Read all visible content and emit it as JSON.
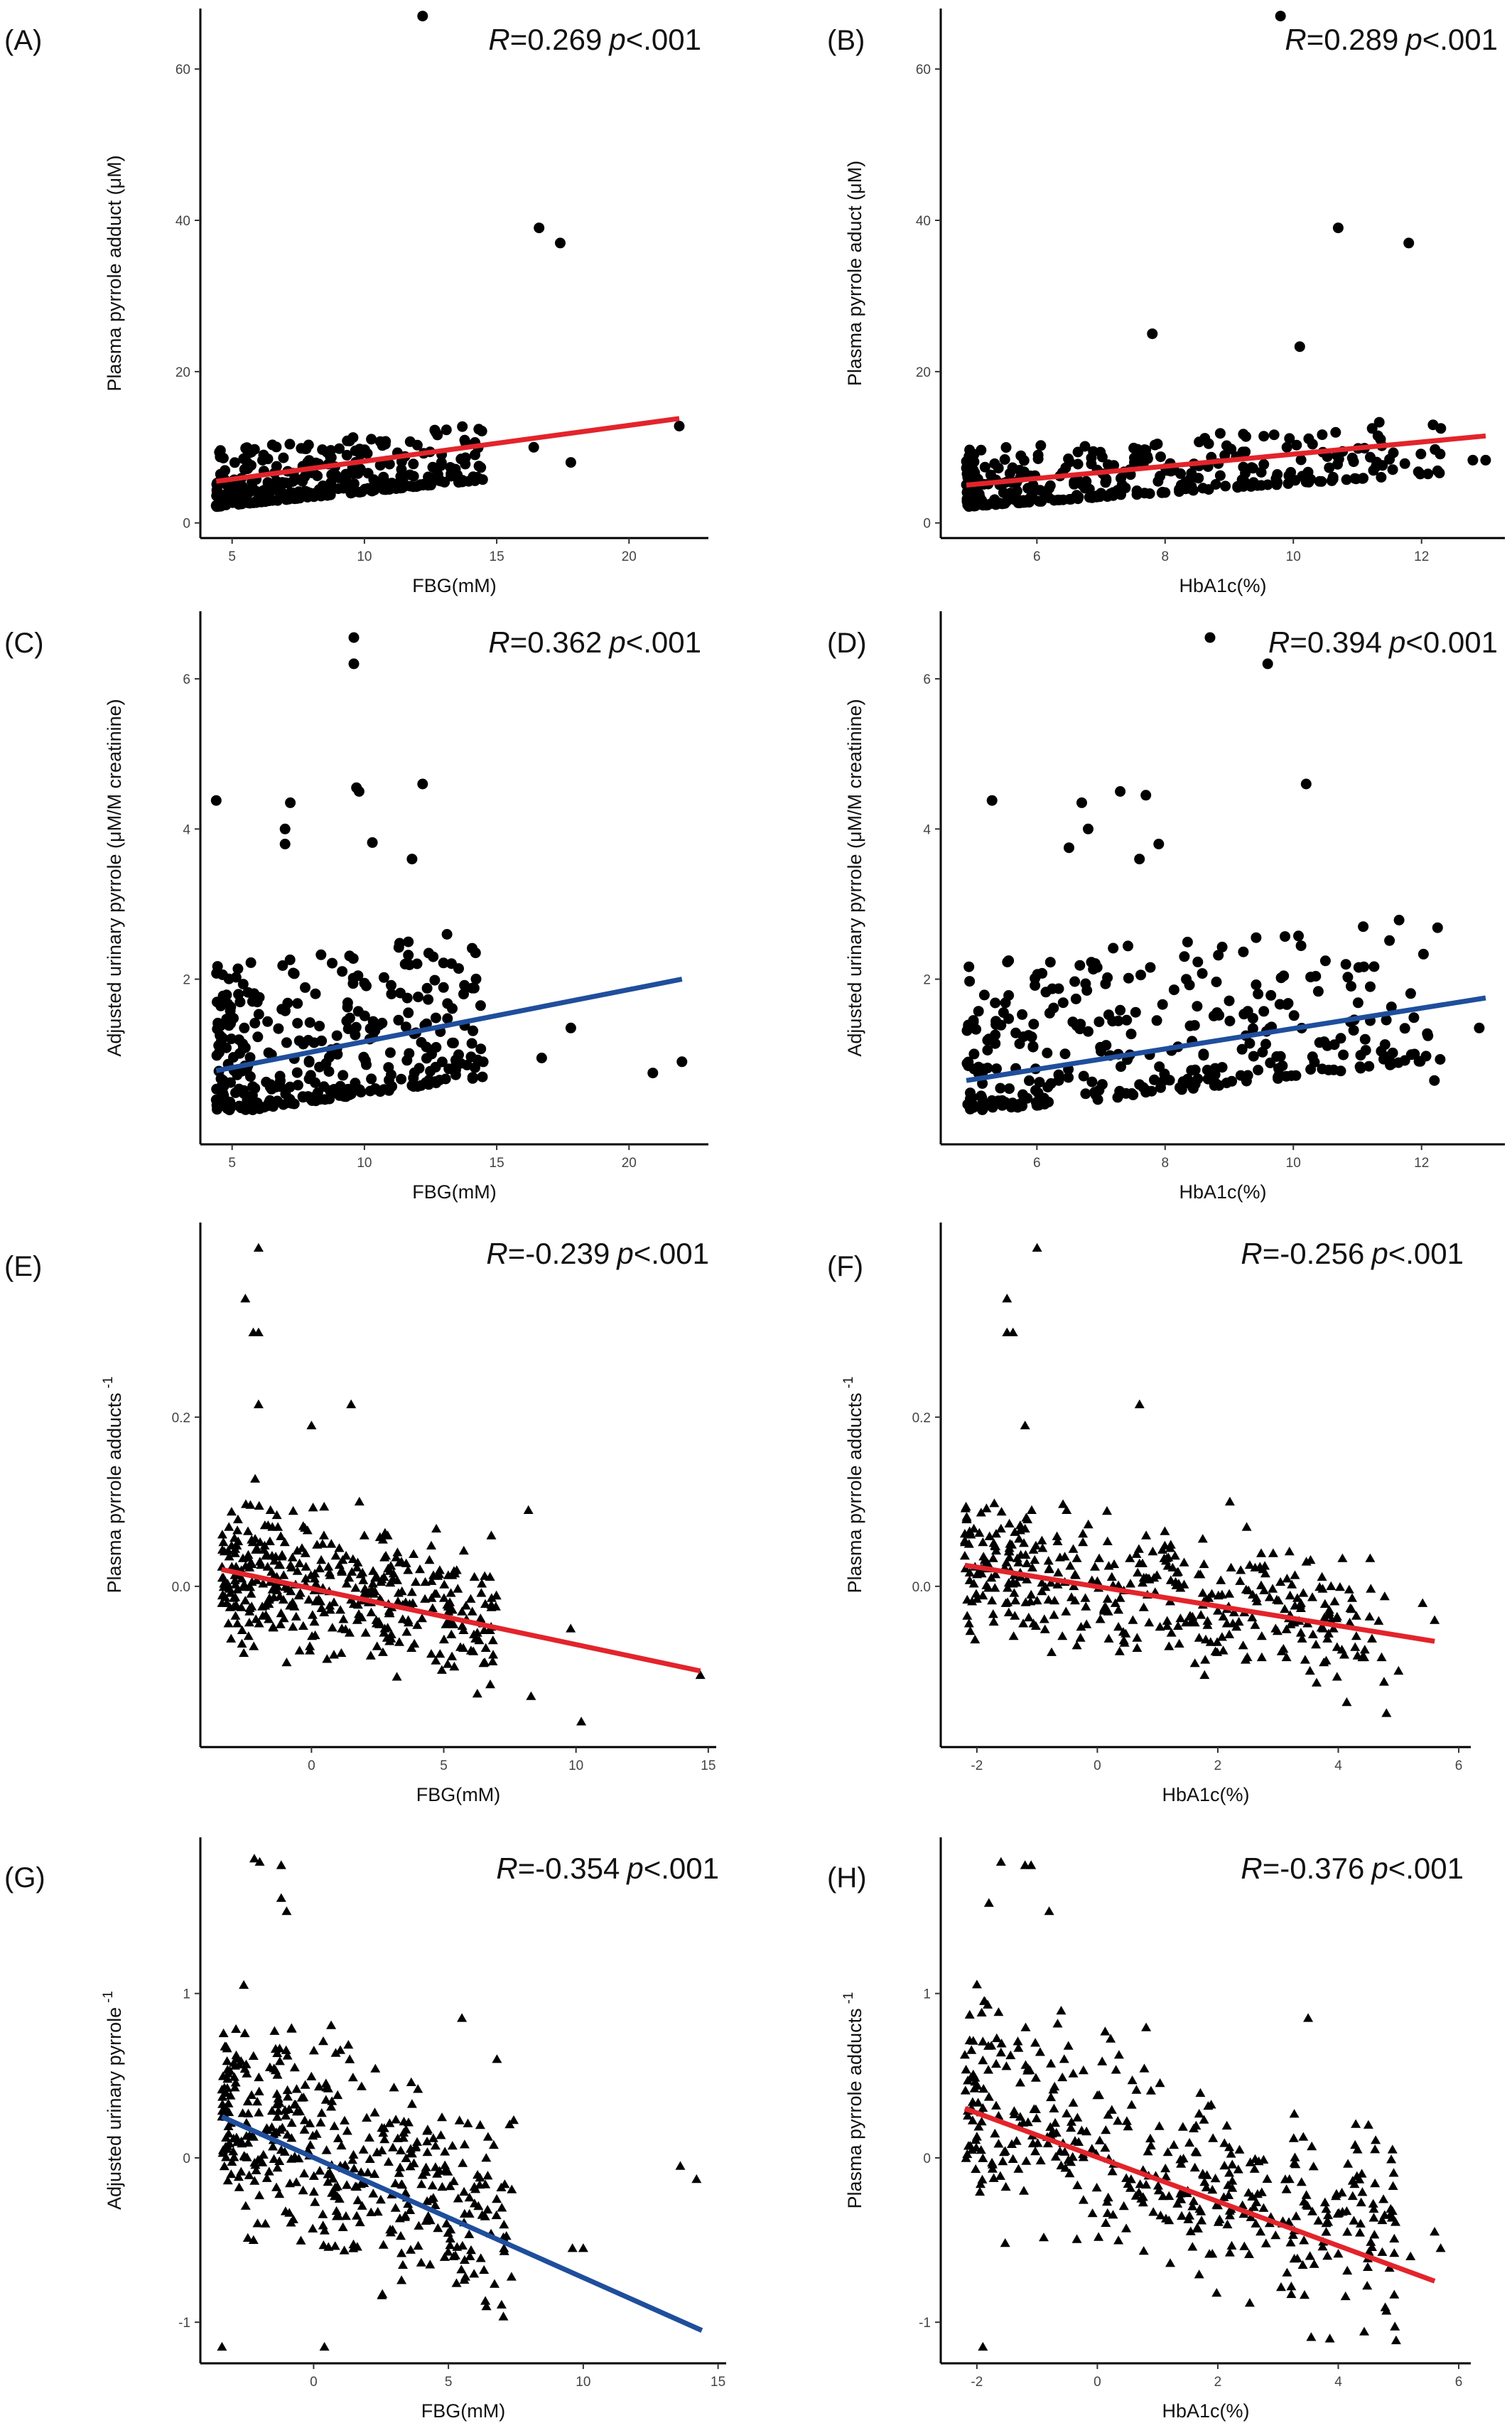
{
  "colors": {
    "red": "#e3242b",
    "blue": "#1f4e9c",
    "points": "#000000"
  },
  "chart_data": [
    {
      "label": "(A)",
      "type": "scatter",
      "marker": "circle",
      "xlabel": "FBG(mM)",
      "ylabel": "Plasma pyrrole adduct (μM)",
      "xlim": [
        3.8,
        23
      ],
      "ylim": [
        -2,
        68
      ],
      "xticks": [
        5,
        10,
        15,
        20
      ],
      "yticks": [
        0,
        20,
        40,
        60
      ],
      "xtick_labels": [
        "5",
        "10",
        "15",
        "20"
      ],
      "ytick_labels": [
        "0",
        "20",
        "40",
        "60"
      ],
      "stat_R": "=0.269",
      "stat_p": ".001",
      "fit": {
        "color": "red",
        "x": [
          4.4,
          21.9
        ],
        "y": [
          5.5,
          13.8
        ]
      },
      "outliers": [
        [
          12.2,
          67
        ],
        [
          16.6,
          39
        ],
        [
          17.4,
          37
        ],
        [
          21.9,
          12.8
        ],
        [
          17.8,
          8
        ],
        [
          16.4,
          10
        ],
        [
          12.7,
          12
        ],
        [
          13.1,
          12.3
        ]
      ],
      "cluster": {
        "seed": 11,
        "n": 330,
        "x": [
          4.4,
          14.5
        ],
        "xskew": 1.7,
        "y_min": 0.5,
        "y_base": 3,
        "y_slope": 0.35,
        "y_spread": 7.5,
        "yskew": 2.4
      },
      "points": []
    },
    {
      "label": "(B)",
      "type": "scatter",
      "marker": "circle",
      "xlabel": "HbA1c(%)",
      "ylabel": "Plasma pyrrole aduct (μM)",
      "xlim": [
        4.5,
        13.3
      ],
      "ylim": [
        -2,
        68
      ],
      "xticks": [
        6,
        8,
        10,
        12
      ],
      "yticks": [
        0,
        20,
        40,
        60
      ],
      "xtick_labels": [
        "6",
        "8",
        "10",
        "12"
      ],
      "ytick_labels": [
        "0",
        "20",
        "40",
        "60"
      ],
      "stat_R": "=0.289",
      "stat_p": ".001",
      "fit": {
        "color": "red",
        "x": [
          4.9,
          13.0
        ],
        "y": [
          5.0,
          11.5
        ]
      },
      "outliers": [
        [
          9.8,
          67
        ],
        [
          10.7,
          39
        ],
        [
          11.8,
          37
        ],
        [
          13.0,
          8.3
        ],
        [
          12.8,
          8.3
        ],
        [
          12.3,
          12.5
        ],
        [
          10.1,
          23.3
        ],
        [
          7.8,
          25
        ]
      ],
      "cluster": {
        "seed": 23,
        "n": 330,
        "x": [
          4.9,
          12.3
        ],
        "xskew": 1.6,
        "y_min": 0.5,
        "y_base": 3,
        "y_slope": 0.6,
        "y_spread": 7.5,
        "yskew": 2.4
      },
      "points": []
    },
    {
      "label": "(C)",
      "type": "scatter",
      "marker": "circle",
      "xlabel": "FBG(mM)",
      "ylabel": "Adjusted urinary pyrrole (μM/M creatinine)",
      "xlim": [
        3.8,
        23
      ],
      "ylim": [
        -0.2,
        6.9
      ],
      "xticks": [
        5,
        10,
        15,
        20
      ],
      "yticks": [
        2,
        4,
        6
      ],
      "xtick_labels": [
        "5",
        "10",
        "15",
        "20"
      ],
      "ytick_labels": [
        "2",
        "4",
        "6"
      ],
      "stat_R": "=0.362",
      "stat_p": ".001",
      "fit": {
        "color": "blue",
        "x": [
          4.4,
          22.0
        ],
        "y": [
          0.78,
          2.0
        ]
      },
      "outliers": [
        [
          9.6,
          6.55
        ],
        [
          9.6,
          6.2
        ],
        [
          9.7,
          4.55
        ],
        [
          9.8,
          4.5
        ],
        [
          12.2,
          4.6
        ],
        [
          4.4,
          4.38
        ],
        [
          7.2,
          4.35
        ],
        [
          7.0,
          4.0
        ],
        [
          7.0,
          3.8
        ],
        [
          10.3,
          3.82
        ],
        [
          11.8,
          3.6
        ],
        [
          20.9,
          0.75
        ],
        [
          22.0,
          0.9
        ],
        [
          17.8,
          1.35
        ],
        [
          16.7,
          0.95
        ],
        [
          14.2,
          2.35
        ]
      ],
      "cluster": {
        "seed": 37,
        "n": 330,
        "x": [
          4.4,
          14.5
        ],
        "xskew": 1.6,
        "y_min": 0.25,
        "y_base": 0.3,
        "y_slope": 0.05,
        "y_spread": 2.0,
        "yskew": 1.9
      },
      "points": []
    },
    {
      "label": "(D)",
      "type": "scatter",
      "marker": "circle",
      "xlabel": "HbA1c(%)",
      "ylabel": "Adjusted urinary pyrrole (μM/M creatinine)",
      "xlim": [
        4.5,
        13.3
      ],
      "ylim": [
        -0.2,
        6.9
      ],
      "xticks": [
        6,
        8,
        10,
        12
      ],
      "yticks": [
        2,
        4,
        6
      ],
      "xtick_labels": [
        "6",
        "8",
        "10",
        "12"
      ],
      "ytick_labels": [
        "2",
        "4",
        "6"
      ],
      "stat_R": "=0.394",
      "stat_p": "0.001",
      "fit": {
        "color": "blue",
        "x": [
          4.9,
          13.0
        ],
        "y": [
          0.65,
          1.75
        ]
      },
      "outliers": [
        [
          8.7,
          6.55
        ],
        [
          9.6,
          6.2
        ],
        [
          10.2,
          4.6
        ],
        [
          5.3,
          4.38
        ],
        [
          6.7,
          4.35
        ],
        [
          6.8,
          4.0
        ],
        [
          6.5,
          3.75
        ],
        [
          7.3,
          4.5
        ],
        [
          7.7,
          4.45
        ],
        [
          7.9,
          3.8
        ],
        [
          7.6,
          3.6
        ],
        [
          12.2,
          0.65
        ],
        [
          12.9,
          1.35
        ],
        [
          11.2,
          1.9
        ]
      ],
      "cluster": {
        "seed": 53,
        "n": 330,
        "x": [
          4.9,
          12.3
        ],
        "xskew": 1.4,
        "y_min": 0.25,
        "y_base": 0.3,
        "y_slope": 0.1,
        "y_spread": 2.0,
        "yskew": 1.9
      },
      "points": []
    },
    {
      "label": "(E)",
      "type": "scatter",
      "marker": "triangle",
      "xlabel": "FBG(mM)",
      "ylabel": "Plasma pyrrole adducts",
      "ylabel_superscript": "-1",
      "xlim": [
        -4.2,
        15.3
      ],
      "ylim": [
        -0.19,
        0.43
      ],
      "xticks": [
        0,
        5,
        10,
        15
      ],
      "yticks": [
        0.0,
        0.2
      ],
      "xtick_labels": [
        "0",
        "5",
        "10",
        "15"
      ],
      "ytick_labels": [
        "0.0",
        "0.2"
      ],
      "stat_R": "=-0.239",
      "stat_p": ".001",
      "fit": {
        "color": "red",
        "x": [
          -3.4,
          14.7
        ],
        "y": [
          0.02,
          -0.1
        ]
      },
      "outliers": [
        [
          -2.0,
          0.4
        ],
        [
          -2.5,
          0.34
        ],
        [
          -2.2,
          0.3
        ],
        [
          -2.0,
          0.3
        ],
        [
          1.5,
          0.215
        ],
        [
          -2.0,
          0.215
        ],
        [
          0.0,
          0.19
        ],
        [
          10.2,
          -0.16
        ],
        [
          14.7,
          -0.105
        ],
        [
          8.3,
          -0.13
        ],
        [
          9.8,
          -0.05
        ],
        [
          8.2,
          0.09
        ],
        [
          6.8,
          0.06
        ]
      ],
      "cluster": {
        "seed": 71,
        "n": 400,
        "x": [
          -3.4,
          7.0
        ],
        "xskew": 1.3,
        "y_mode": "centered",
        "y_center": 0.0,
        "y_slope": -0.006,
        "y_spread": 0.13,
        "ysd": 0.05
      },
      "points": []
    },
    {
      "label": "(F)",
      "type": "scatter",
      "marker": "triangle",
      "xlabel": "HbA1c(%)",
      "ylabel": "Plasma pyrrole adducts",
      "ylabel_superscript": "-1",
      "xlim": [
        -2.6,
        6.2
      ],
      "ylim": [
        -0.19,
        0.43
      ],
      "xticks": [
        -2,
        0,
        2,
        4,
        6
      ],
      "yticks": [
        0.0,
        0.2
      ],
      "xtick_labels": [
        "-2",
        "0",
        "2",
        "4",
        "6"
      ],
      "ytick_labels": [
        "0.0",
        "0.2"
      ],
      "stat_R": "=-0.256",
      "stat_p": ".001",
      "fit": {
        "color": "red",
        "x": [
          -2.2,
          5.6
        ],
        "y": [
          0.025,
          -0.065
        ]
      },
      "outliers": [
        [
          -1.0,
          0.4
        ],
        [
          -1.5,
          0.34
        ],
        [
          -1.5,
          0.3
        ],
        [
          -1.4,
          0.3
        ],
        [
          0.7,
          0.215
        ],
        [
          -1.2,
          0.19
        ],
        [
          4.8,
          -0.15
        ],
        [
          5.0,
          -0.1
        ],
        [
          5.4,
          -0.02
        ],
        [
          5.6,
          -0.04
        ],
        [
          2.2,
          0.1
        ]
      ],
      "cluster": {
        "seed": 89,
        "n": 400,
        "x": [
          -2.2,
          4.8
        ],
        "xskew": 1.3,
        "y_mode": "centered",
        "y_center": 0.0,
        "y_slope": -0.01,
        "y_spread": 0.13,
        "ysd": 0.05
      },
      "points": []
    },
    {
      "label": "(G)",
      "type": "scatter",
      "marker": "triangle",
      "xlabel": "FBG(mM)",
      "ylabel": "Adjusted urinary pyrrole",
      "ylabel_superscript": "-1",
      "xlim": [
        -4.2,
        15.3
      ],
      "ylim": [
        -1.25,
        1.95
      ],
      "xticks": [
        0,
        5,
        10,
        15
      ],
      "yticks": [
        -1,
        0,
        1
      ],
      "xtick_labels": [
        "0",
        "5",
        "10",
        "15"
      ],
      "ytick_labels": [
        "-1",
        "0",
        "1"
      ],
      "stat_R": "=-0.354",
      "stat_p": ".001",
      "fit": {
        "color": "blue",
        "x": [
          -3.4,
          14.4
        ],
        "y": [
          0.25,
          -1.05
        ]
      },
      "outliers": [
        [
          -2.2,
          1.82
        ],
        [
          -2.0,
          1.8
        ],
        [
          -1.2,
          1.78
        ],
        [
          -1.2,
          1.58
        ],
        [
          -1.0,
          1.5
        ],
        [
          -3.4,
          -1.15
        ],
        [
          0.4,
          -1.15
        ],
        [
          13.6,
          -0.05
        ],
        [
          14.2,
          -0.13
        ],
        [
          10.0,
          -0.55
        ],
        [
          9.6,
          -0.55
        ],
        [
          5.5,
          0.85
        ],
        [
          6.8,
          0.6
        ]
      ],
      "cluster": {
        "seed": 101,
        "n": 420,
        "x": [
          -3.4,
          7.5
        ],
        "xskew": 1.3,
        "y_mode": "centered",
        "y_center": 0.1,
        "y_slope": -0.07,
        "y_spread": 1.0,
        "ysd": 0.42
      },
      "points": []
    },
    {
      "label": "(H)",
      "type": "scatter",
      "marker": "triangle",
      "xlabel": "HbA1c(%)",
      "ylabel": "Plasma pyrrole adducts",
      "ylabel_superscript": "-1",
      "xlim": [
        -2.6,
        6.2
      ],
      "ylim": [
        -1.25,
        1.95
      ],
      "xticks": [
        -2,
        0,
        2,
        4,
        6
      ],
      "yticks": [
        -1,
        0,
        1
      ],
      "xtick_labels": [
        "-2",
        "0",
        "2",
        "4",
        "6"
      ],
      "ytick_labels": [
        "-1",
        "0",
        "1"
      ],
      "stat_R": "=-0.376",
      "stat_p": ".001",
      "fit": {
        "color": "red",
        "x": [
          -2.2,
          5.6
        ],
        "y": [
          0.3,
          -0.75
        ]
      },
      "outliers": [
        [
          -1.6,
          1.8
        ],
        [
          -1.2,
          1.78
        ],
        [
          -1.1,
          1.78
        ],
        [
          -0.8,
          1.5
        ],
        [
          -1.8,
          1.55
        ],
        [
          -1.9,
          -1.15
        ],
        [
          5.6,
          -0.45
        ],
        [
          5.7,
          -0.55
        ],
        [
          4.9,
          0.05
        ],
        [
          4.5,
          0.2
        ],
        [
          3.5,
          0.85
        ],
        [
          5.2,
          -0.6
        ]
      ],
      "cluster": {
        "seed": 131,
        "n": 420,
        "x": [
          -2.2,
          5.0
        ],
        "xskew": 1.25,
        "y_mode": "centered",
        "y_center": 0.1,
        "y_slope": -0.13,
        "y_spread": 1.0,
        "ysd": 0.42
      },
      "points": []
    }
  ]
}
